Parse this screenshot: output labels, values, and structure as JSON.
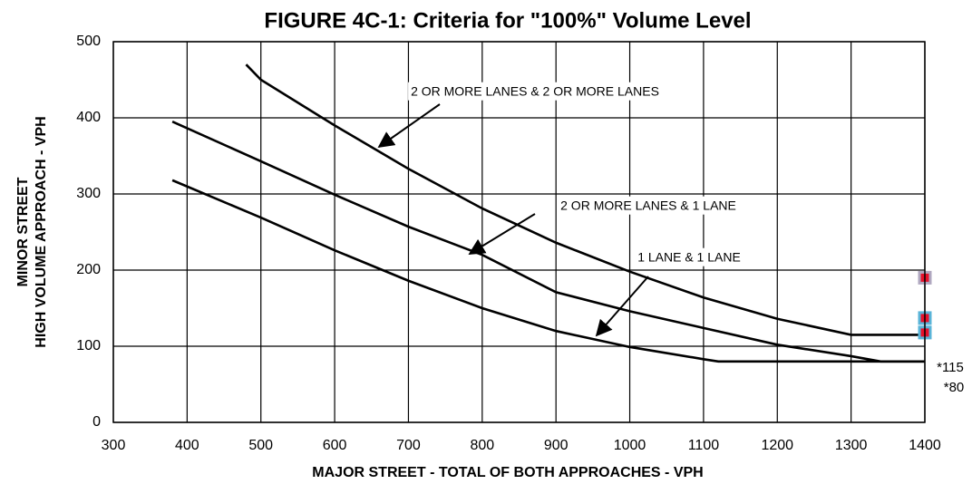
{
  "chart_data": {
    "type": "line",
    "title": "FIGURE 4C-1:  Criteria for \"100%\" Volume Level",
    "xlabel": "MAJOR STREET - TOTAL OF BOTH APPROACHES - VPH",
    "ylabel": [
      "MINOR STREET",
      "HIGH VOLUME APPROACH - VPH"
    ],
    "xlim": [
      300,
      1400
    ],
    "ylim": [
      0,
      500
    ],
    "xticks": [
      300,
      400,
      500,
      600,
      700,
      800,
      900,
      1000,
      1100,
      1200,
      1300,
      1400
    ],
    "yticks": [
      0,
      100,
      200,
      300,
      400,
      500
    ],
    "grid": true,
    "lines": [
      {
        "label": "2 OR MORE LANES & 2 OR MORE LANES",
        "color": "#000000",
        "x": [
          480,
          500,
          600,
          700,
          800,
          900,
          1000,
          1100,
          1200,
          1300,
          1400
        ],
        "values": [
          470,
          450,
          390,
          333,
          281,
          236,
          198,
          164,
          136,
          115,
          115
        ]
      },
      {
        "label": "2 OR MORE LANES & 1 LANE",
        "color": "#000000",
        "x": [
          380,
          500,
          600,
          700,
          800,
          900,
          1000,
          1100,
          1200,
          1300,
          1340,
          1400
        ],
        "values": [
          395,
          343,
          299,
          257,
          220,
          171,
          146,
          124,
          102,
          87,
          80,
          80
        ]
      },
      {
        "label": "1 LANE & 1 LANE",
        "color": "#000000",
        "x": [
          380,
          500,
          600,
          700,
          800,
          900,
          1000,
          1100,
          1120,
          1400
        ],
        "values": [
          318,
          269,
          226,
          186,
          150,
          120,
          99,
          83,
          80,
          80
        ]
      }
    ],
    "markers": {
      "x": [
        1400,
        1400,
        1400
      ],
      "values": [
        190,
        137,
        118
      ],
      "color": "#e8102a",
      "outlines": [
        "#b0a8c0",
        "#5ab4d8",
        "#5ab4d8"
      ]
    },
    "annotations": [
      "*115",
      "*80"
    ]
  }
}
